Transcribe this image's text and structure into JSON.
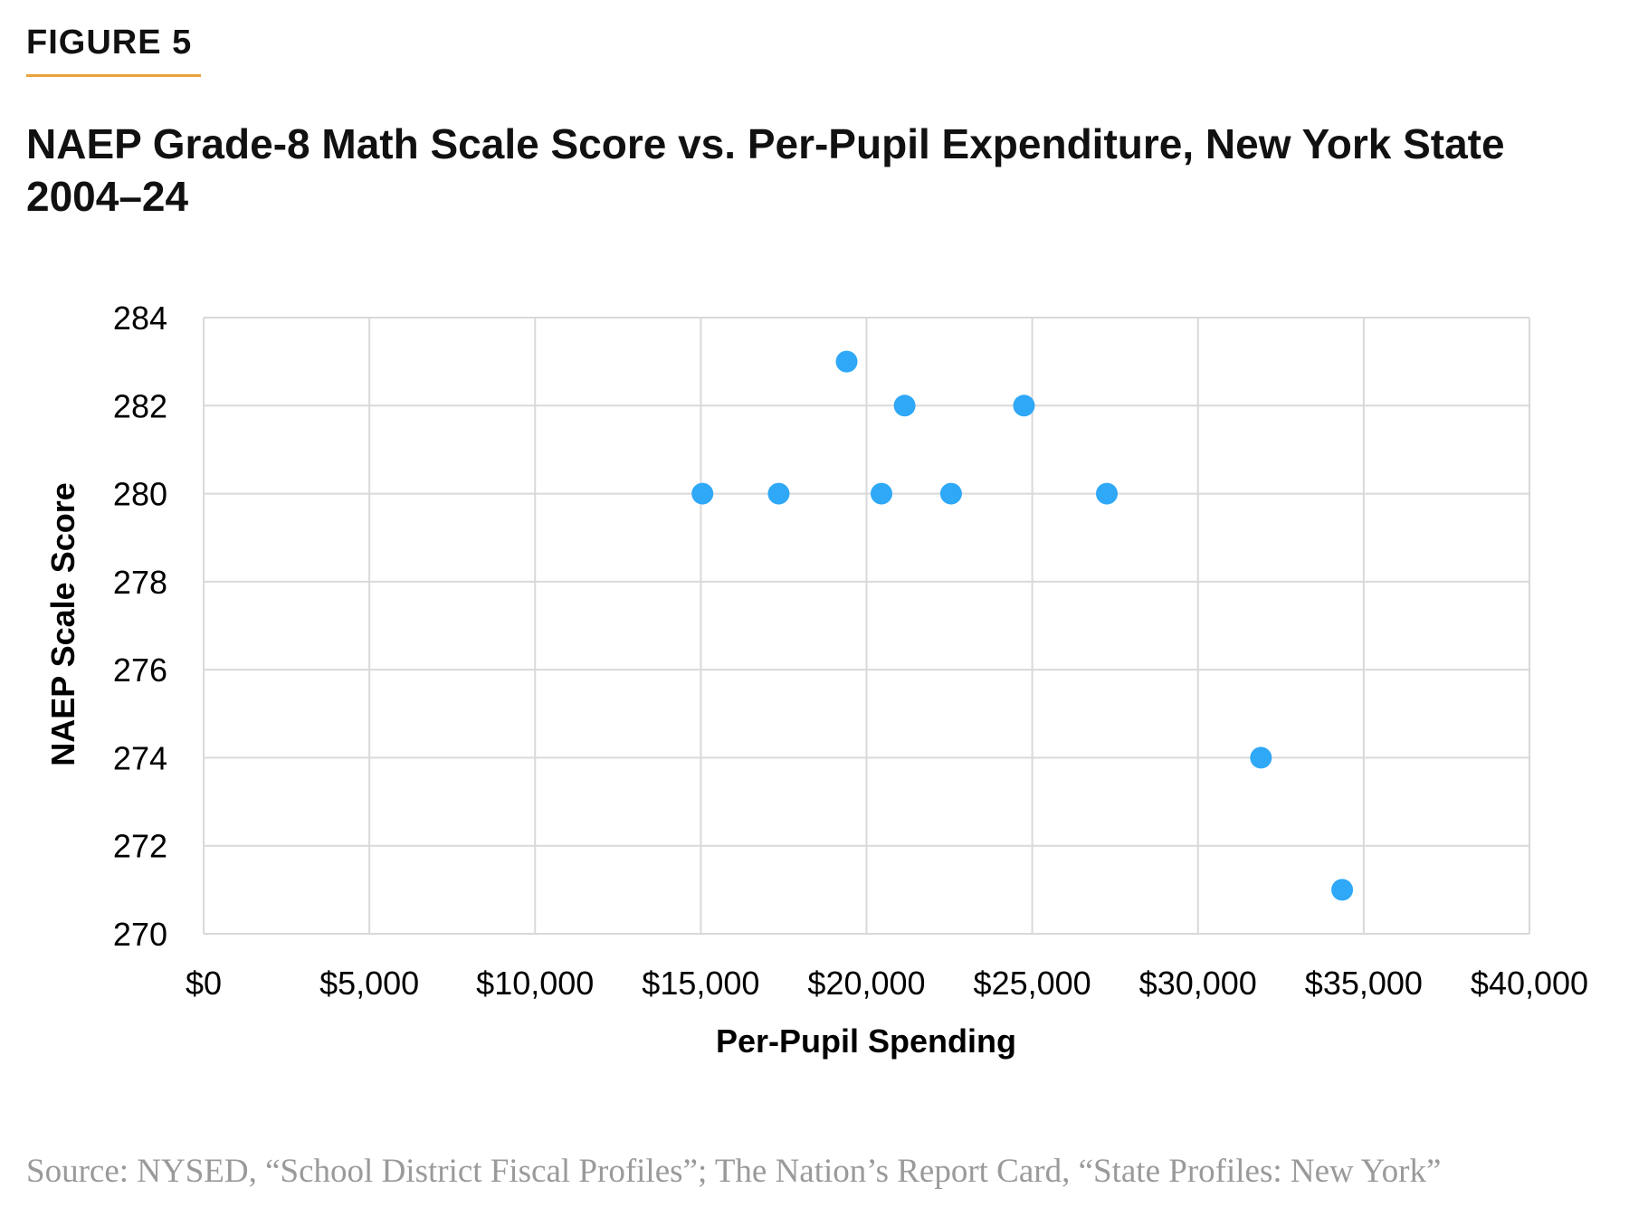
{
  "figure_label": "FIGURE 5",
  "source": "Source: NYSED, “School District Fiscal Profiles”; The Nation’s Report Card, “State Profiles: New York”",
  "colors": {
    "accent_rule": "#e8a33c",
    "point": "#2ea8f7",
    "grid": "#d9d9d9"
  },
  "chart_data": {
    "type": "scatter",
    "title": "NAEP Grade-8 Math Scale Score vs. Per-Pupil Expenditure, New York State 2004–24",
    "xlabel": "Per-Pupil Spending",
    "ylabel": "NAEP Scale Score",
    "xlim": [
      0,
      40000
    ],
    "ylim": [
      270,
      284
    ],
    "x_ticks": [
      0,
      5000,
      10000,
      15000,
      20000,
      25000,
      30000,
      35000,
      40000
    ],
    "x_tick_labels": [
      "$0",
      "$5,000",
      "$10,000",
      "$15,000",
      "$20,000",
      "$25,000",
      "$30,000",
      "$35,000",
      "$40,000"
    ],
    "y_ticks": [
      270,
      272,
      274,
      276,
      278,
      280,
      282,
      284
    ],
    "y_tick_labels": [
      "270",
      "272",
      "274",
      "276",
      "278",
      "280",
      "282",
      "284"
    ],
    "grid": true,
    "legend": "none",
    "points": [
      {
        "x": 15050,
        "y": 280
      },
      {
        "x": 17350,
        "y": 280
      },
      {
        "x": 19400,
        "y": 283
      },
      {
        "x": 20450,
        "y": 280
      },
      {
        "x": 21150,
        "y": 282
      },
      {
        "x": 22550,
        "y": 280
      },
      {
        "x": 24750,
        "y": 282
      },
      {
        "x": 27250,
        "y": 280
      },
      {
        "x": 31900,
        "y": 274
      },
      {
        "x": 34350,
        "y": 271
      }
    ]
  }
}
